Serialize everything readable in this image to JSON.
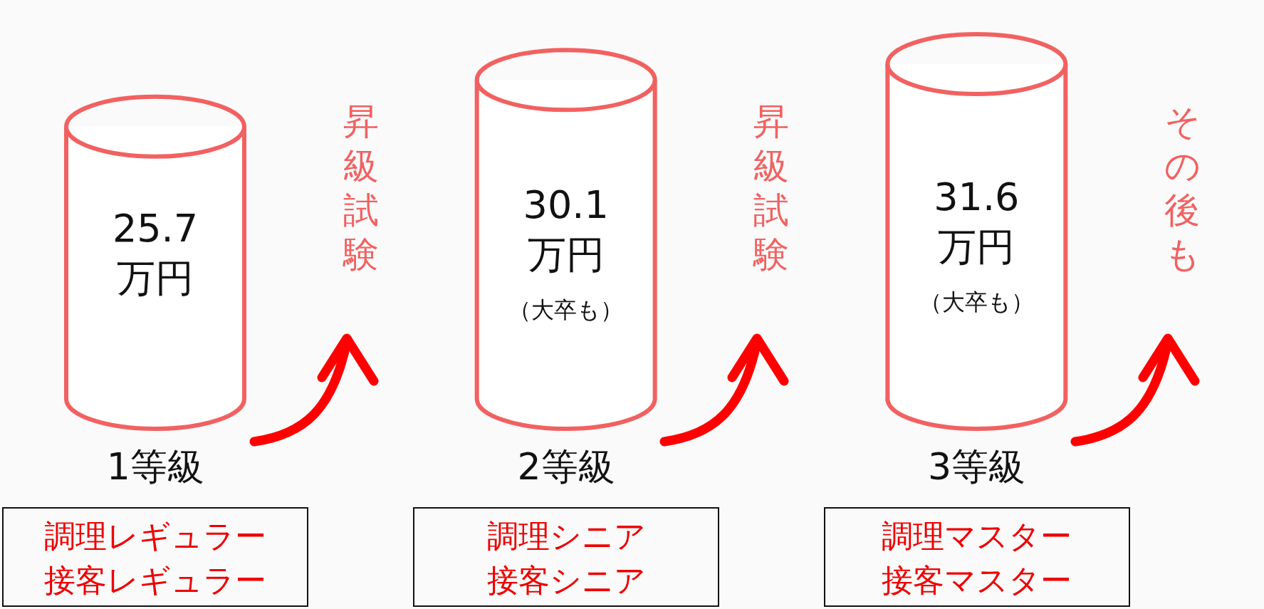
{
  "chart_data": {
    "type": "bar",
    "color": "#f26161",
    "categories": [
      "1等級",
      "2等級",
      "3等級"
    ],
    "values": [
      25.7,
      30.1,
      31.6
    ],
    "value_labels": [
      "25.7\n万円",
      "30.1\n万円",
      "31.6\n万円"
    ],
    "annotations": [
      "調理レギュラー",
      "接客レギュラー",
      "調理シニア",
      "接客シニア",
      "調理マスター",
      "接客マスター",
      "（大卒も）",
      "（大卒も）",
      "昇級試験",
      "昇級試験",
      "その後も"
    ]
  }
}
